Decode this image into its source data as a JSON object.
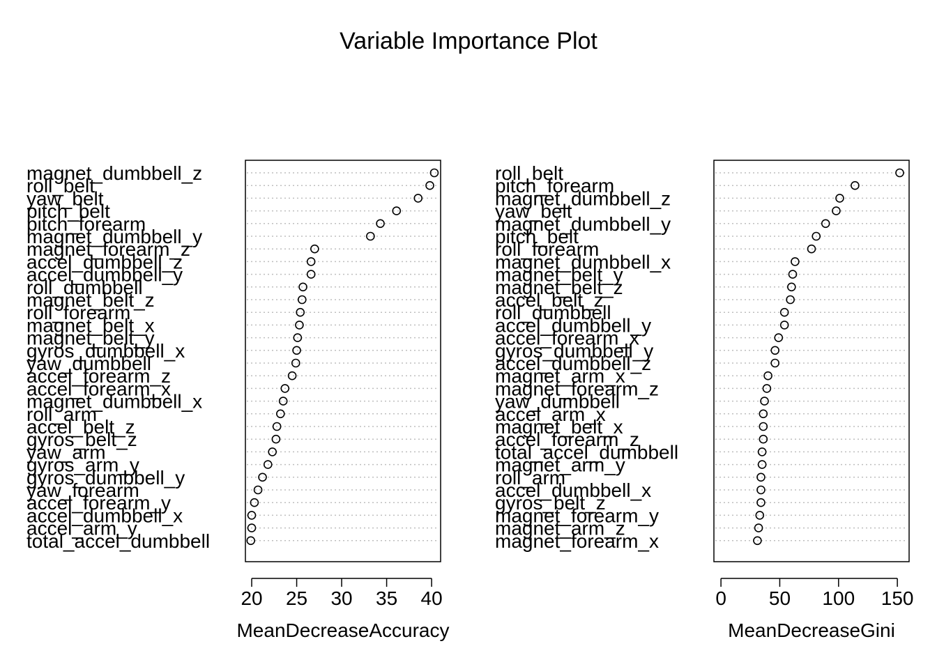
{
  "title": "Variable Importance Plot",
  "chart_data": [
    {
      "type": "scatter",
      "xlabel": "MeanDecreaseAccuracy",
      "xlim": [
        19.3,
        41.0
      ],
      "xticks": [
        20,
        25,
        30,
        35,
        40
      ],
      "labels": [
        "magnet_dumbbell_z",
        "roll_belt",
        "yaw_belt",
        "pitch_belt",
        "pitch_forearm",
        "magnet_dumbbell_y",
        "magnet_forearm_z",
        "accel_dumbbell_z",
        "accel_dumbbell_y",
        "roll_dumbbell",
        "magnet_belt_z",
        "roll_forearm",
        "magnet_belt_x",
        "magnet_belt_y",
        "gyros_dumbbell_x",
        "yaw_dumbbell",
        "accel_forearm_z",
        "accel_forearm_x",
        "magnet_dumbbell_x",
        "roll_arm",
        "accel_belt_z",
        "gyros_belt_z",
        "yaw_arm",
        "gyros_arm_y",
        "gyros_dumbbell_y",
        "yaw_forearm",
        "accel_forearm_y",
        "accel_dumbbell_x",
        "accel_arm_y",
        "total_accel_dumbbell"
      ],
      "values": [
        40.3,
        39.8,
        38.5,
        36.1,
        34.3,
        33.2,
        27.0,
        26.6,
        26.6,
        25.7,
        25.6,
        25.4,
        25.3,
        25.1,
        25.0,
        24.9,
        24.5,
        23.7,
        23.5,
        23.2,
        22.8,
        22.7,
        22.3,
        21.8,
        21.2,
        20.7,
        20.3,
        20.0,
        20.0,
        19.9
      ]
    },
    {
      "type": "scatter",
      "xlabel": "MeanDecreaseGini",
      "xlim": [
        -6,
        160
      ],
      "xticks": [
        0,
        50,
        100,
        150
      ],
      "labels": [
        "roll_belt",
        "pitch_forearm",
        "magnet_dumbbell_z",
        "yaw_belt",
        "magnet_dumbbell_y",
        "pitch_belt",
        "roll_forearm",
        "magnet_dumbbell_x",
        "magnet_belt_y",
        "magnet_belt_z",
        "accel_belt_z",
        "roll_dumbbell",
        "accel_dumbbell_y",
        "accel_forearm_x",
        "gyros_dumbbell_y",
        "accel_dumbbell_z",
        "magnet_arm_x",
        "magnet_forearm_z",
        "yaw_dumbbell",
        "accel_arm_x",
        "magnet_belt_x",
        "accel_forearm_z",
        "total_accel_dumbbell",
        "magnet_arm_y",
        "roll_arm",
        "accel_dumbbell_x",
        "gyros_belt_z",
        "magnet_forearm_y",
        "magnet_arm_z",
        "magnet_forearm_x"
      ],
      "values": [
        152,
        114,
        101,
        98,
        89,
        81,
        77,
        63,
        61,
        60,
        59,
        54,
        54,
        49,
        46,
        46,
        40,
        39,
        37,
        36,
        36,
        36,
        35,
        35,
        34,
        34,
        34,
        33,
        32,
        31
      ]
    }
  ]
}
